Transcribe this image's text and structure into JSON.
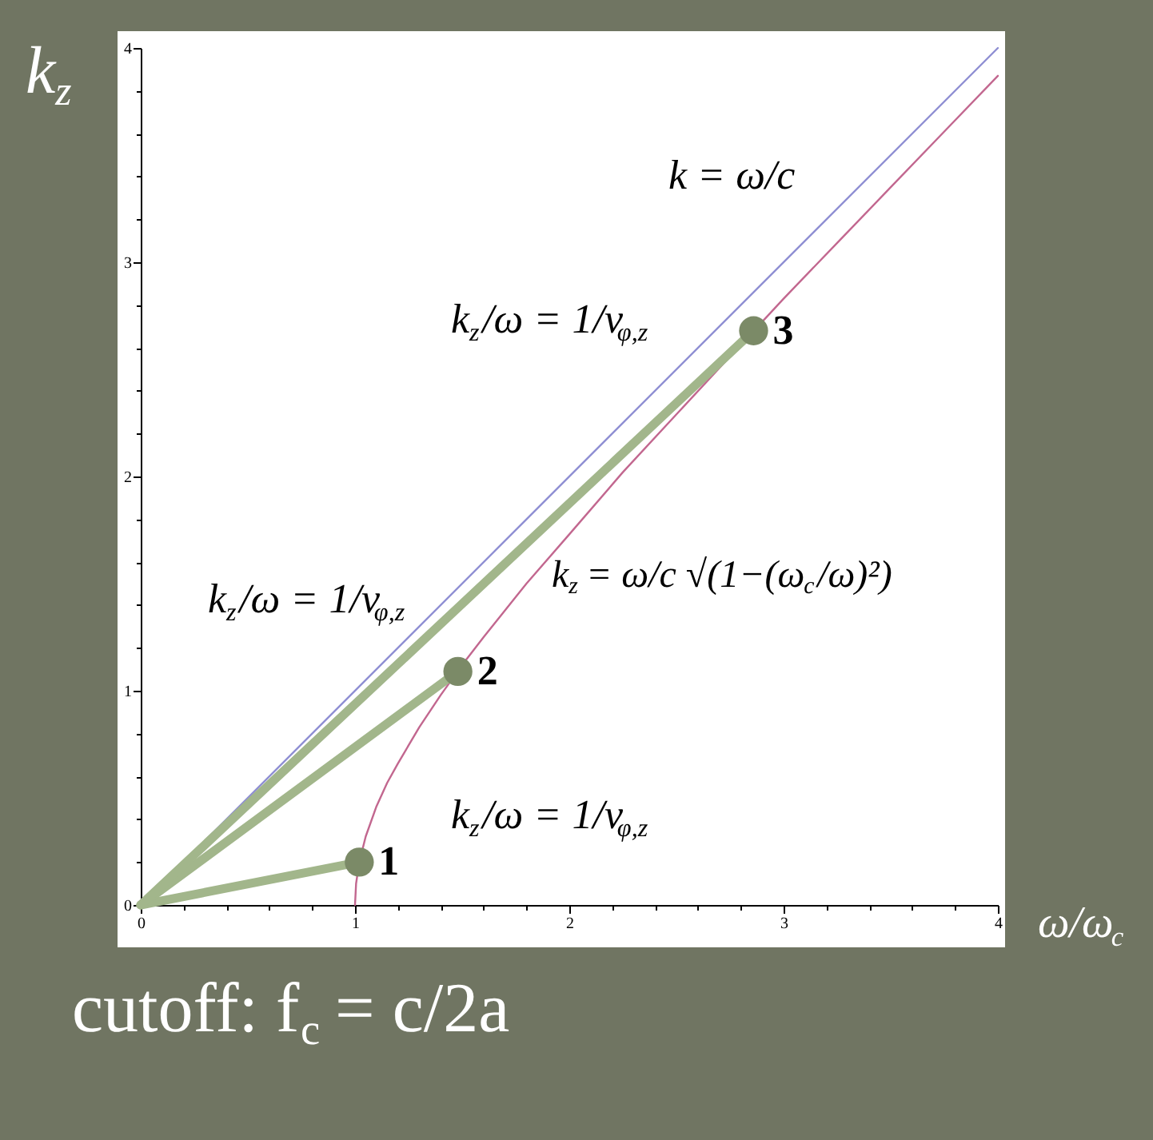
{
  "chart_data": {
    "type": "line",
    "xlabel": "ω/ω$_{c}$",
    "ylabel": "k$_{z}$",
    "xlim": [
      0,
      4
    ],
    "ylim": [
      0,
      4
    ],
    "xticks": [
      0,
      {
        "value": 0.2,
        "label": null
      },
      {
        "value": 0.4,
        "label": null
      },
      {
        "value": 0.6,
        "label": null
      },
      {
        "value": 0.8,
        "label": null
      },
      1,
      {
        "value": 1.2,
        "label": null
      },
      {
        "value": 1.4,
        "label": null
      },
      {
        "value": 1.6,
        "label": null
      },
      {
        "value": 1.8,
        "label": null
      },
      2,
      {
        "value": 2.2,
        "label": null
      },
      {
        "value": 2.4,
        "label": null
      },
      {
        "value": 2.6,
        "label": null
      },
      {
        "value": 2.8,
        "label": null
      },
      3,
      {
        "value": 3.2,
        "label": null
      },
      {
        "value": 3.4,
        "label": null
      },
      {
        "value": 3.6,
        "label": null
      },
      {
        "value": 3.8,
        "label": null
      },
      4
    ],
    "yticks": [
      0,
      {
        "value": 0.2,
        "label": null
      },
      {
        "value": 0.4,
        "label": null
      },
      {
        "value": 0.6,
        "label": null
      },
      {
        "value": 0.8,
        "label": null
      },
      1,
      {
        "value": 1.2,
        "label": null
      },
      {
        "value": 1.4,
        "label": null
      },
      {
        "value": 1.6,
        "label": null
      },
      {
        "value": 1.8,
        "label": null
      },
      2,
      {
        "value": 2.2,
        "label": null
      },
      {
        "value": 2.4,
        "label": null
      },
      {
        "value": 2.6,
        "label": null
      },
      {
        "value": 2.8,
        "label": null
      },
      3,
      {
        "value": 3.2,
        "label": null
      },
      {
        "value": 3.4,
        "label": null
      },
      {
        "value": 3.6,
        "label": null
      },
      {
        "value": 3.8,
        "label": null
      },
      4
    ],
    "series": [
      {
        "color": "#8f8fd3",
        "x": [
          0,
          4
        ],
        "values": [
          0,
          4
        ]
      },
      {
        "color": "#c2678f",
        "x": [
          1,
          1.005,
          1.02,
          1.05,
          1.1,
          1.15,
          1.2,
          1.3,
          1.4,
          1.5,
          1.6,
          1.8,
          2,
          2.25,
          2.5,
          2.75,
          3,
          3.25,
          3.5,
          3.75,
          4
        ],
        "values": [
          0,
          0.1,
          0.2,
          0.32,
          0.46,
          0.57,
          0.66,
          0.83,
          0.98,
          1.12,
          1.25,
          1.5,
          1.73,
          2.02,
          2.29,
          2.56,
          2.83,
          3.09,
          3.35,
          3.61,
          3.87
        ]
      },
      {
        "color": "#a2b68b",
        "x": [
          0,
          1.02
        ],
        "values": [
          0,
          0.2
        ]
      },
      {
        "color": "#a2b68b",
        "x": [
          0,
          1.48
        ],
        "values": [
          0,
          1.09
        ]
      },
      {
        "color": "#a2b68b",
        "x": [
          0,
          2.86
        ],
        "values": [
          0,
          2.68
        ]
      },
      {
        "type": "scatter",
        "marker": "circle",
        "color": "#7b8a67",
        "x": [
          1.02,
          1.48,
          2.86
        ],
        "values": [
          0.2,
          1.09,
          2.68
        ]
      }
    ],
    "annotations": [
      "k = ω/c",
      "k$_{z}$/ω = 1/v$_{φ,z}$",
      "k$_{z}$/ω = 1/v$_{φ,z}$",
      "k$_{z}$ = ω/c √(1−(ω$_{c}$/ω)²)",
      "k$_{z}$/ω = 1/v$_{φ,z}$",
      {
        "text": "1",
        "x": 1.02,
        "y": 0.2
      },
      {
        "text": "2",
        "x": 1.48,
        "y": 1.09
      },
      {
        "text": "3",
        "x": 2.86,
        "y": 2.68
      },
      "cutoff: f$_{c}$ = c/2a"
    ]
  }
}
